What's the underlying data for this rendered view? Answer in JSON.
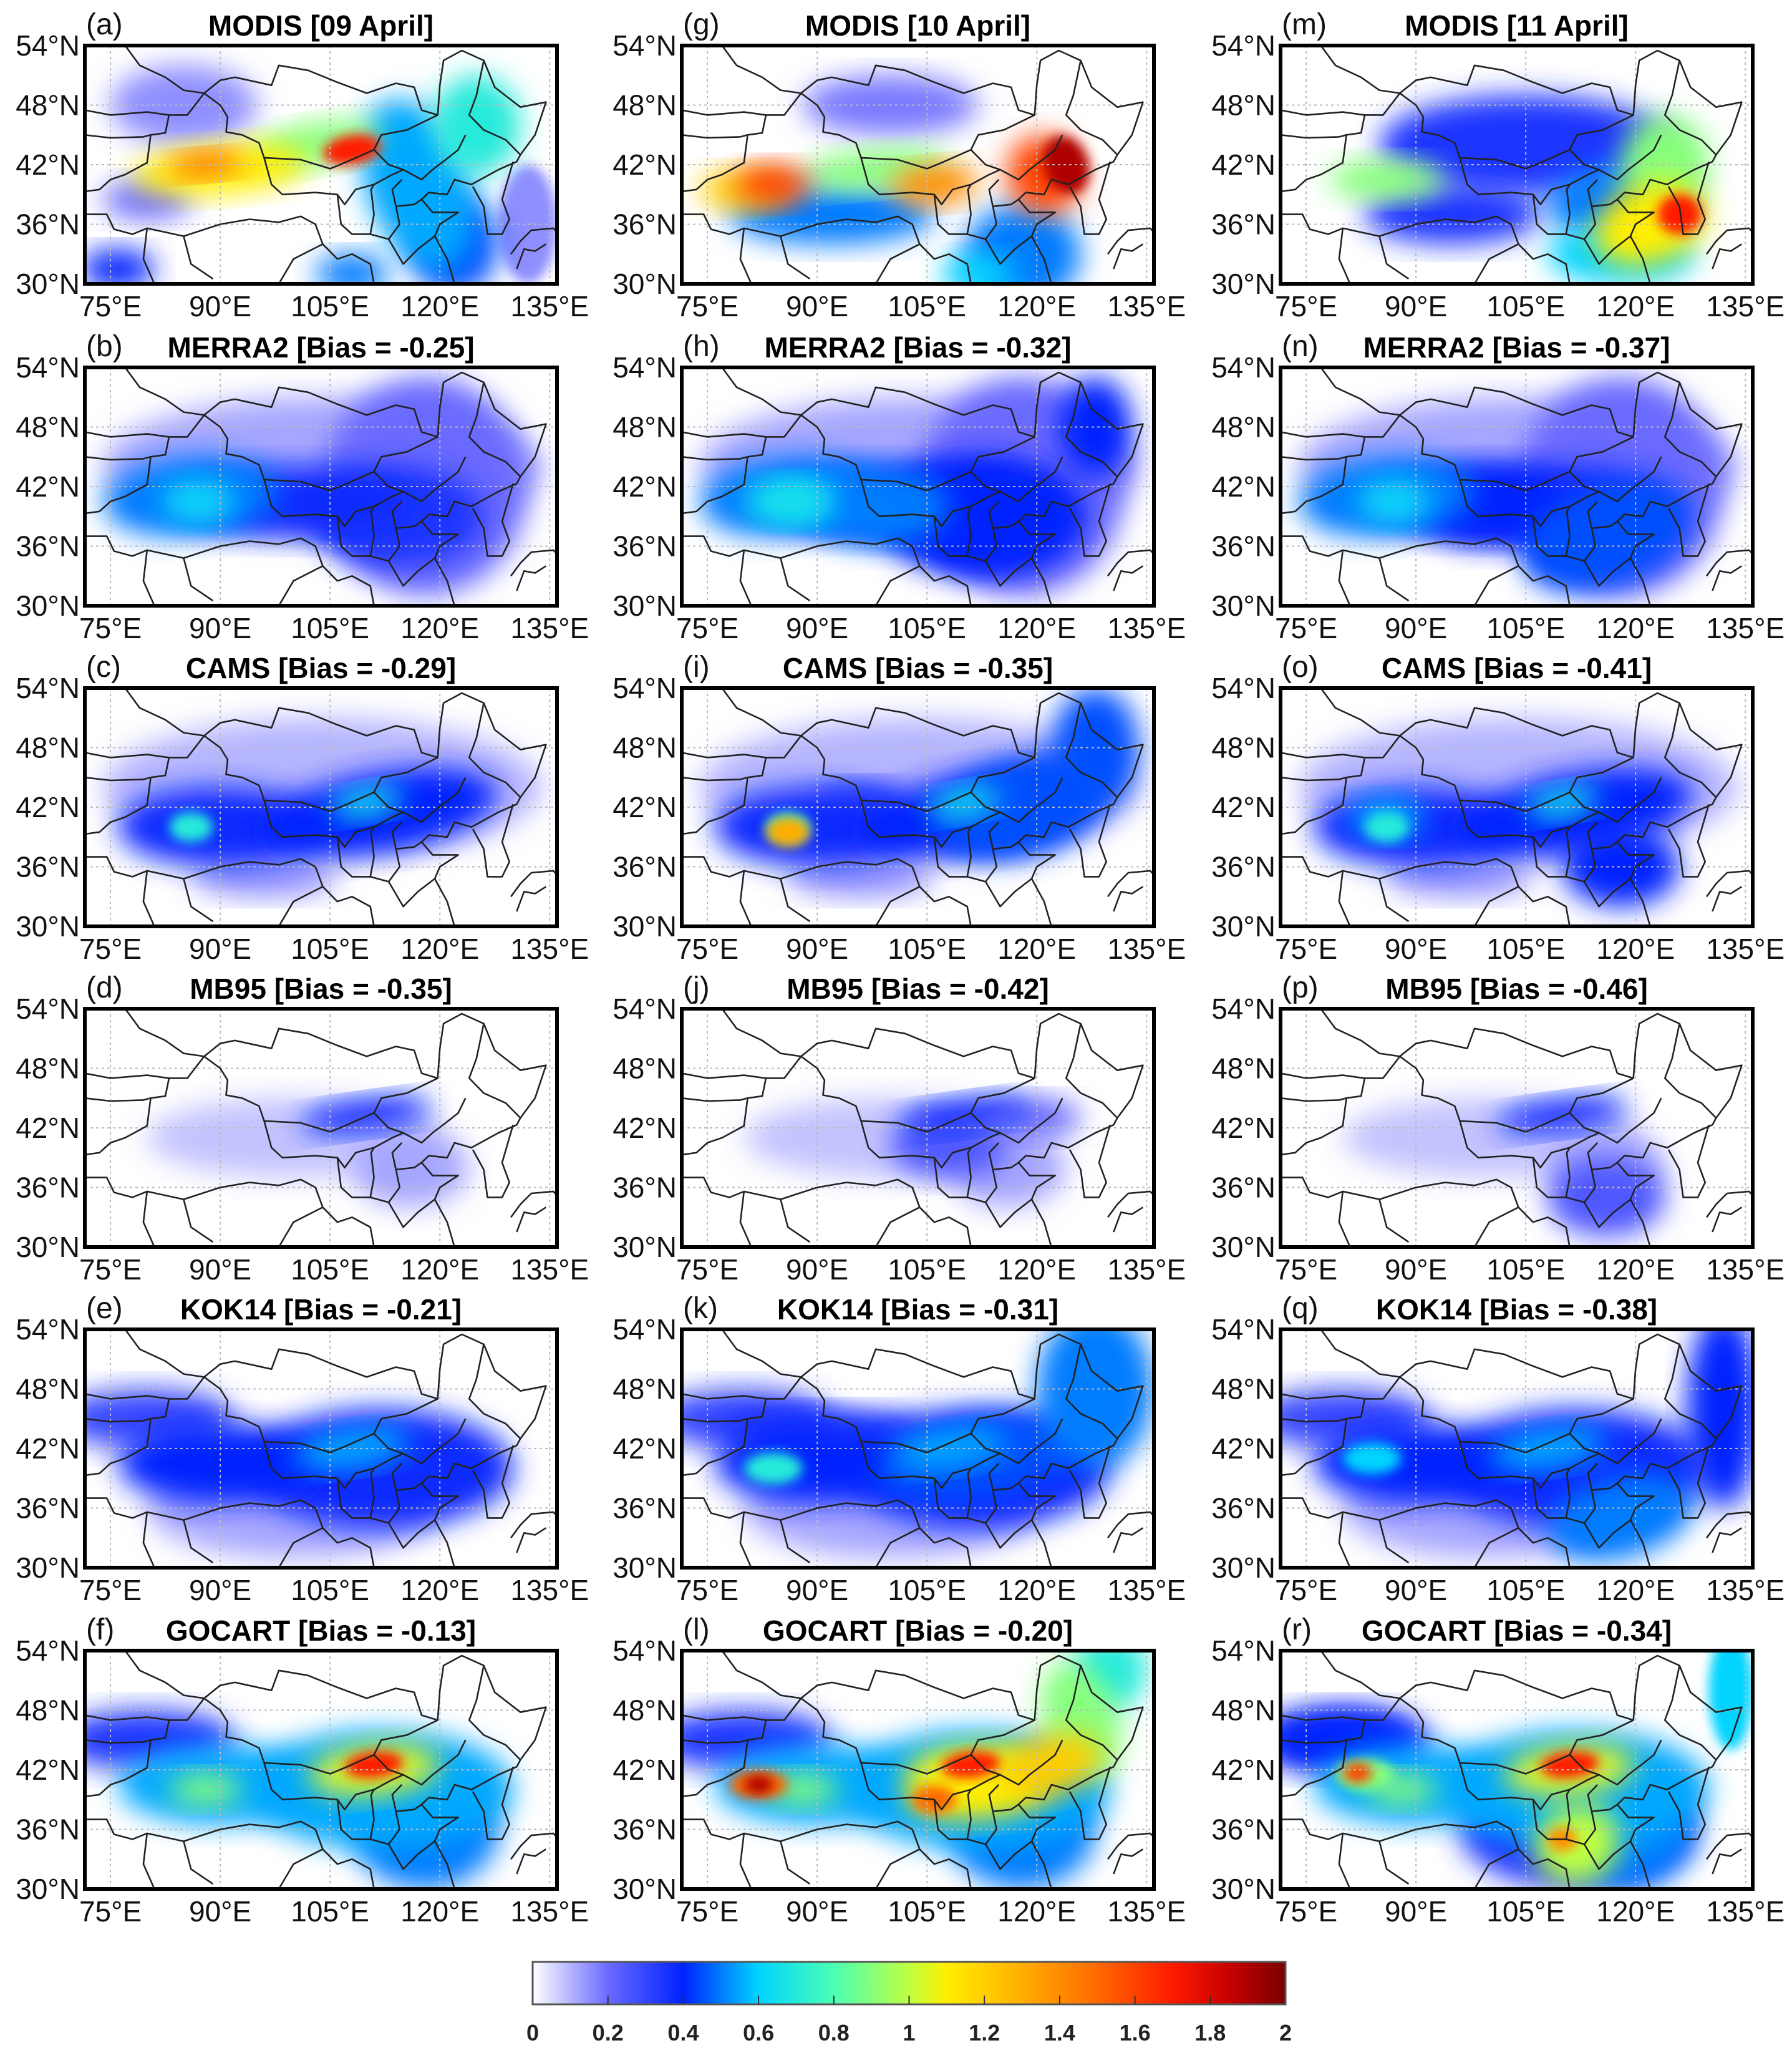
{
  "figure": {
    "columns": [
      "09 April",
      "10 April",
      "11 April"
    ],
    "panels": [
      {
        "letter": "(a)",
        "title": "MODIS [09 April]",
        "source": "MODIS",
        "day": "09 April"
      },
      {
        "letter": "(b)",
        "title": "MERRA2 [Bias = -0.25]",
        "source": "MERRA2",
        "bias": -0.25
      },
      {
        "letter": "(c)",
        "title": "CAMS [Bias = -0.29]",
        "source": "CAMS",
        "bias": -0.29
      },
      {
        "letter": "(d)",
        "title": "MB95 [Bias = -0.35]",
        "source": "MB95",
        "bias": -0.35
      },
      {
        "letter": "(e)",
        "title": "KOK14 [Bias = -0.21]",
        "source": "KOK14",
        "bias": -0.21
      },
      {
        "letter": "(f)",
        "title": "GOCART [Bias = -0.13]",
        "source": "GOCART",
        "bias": -0.13
      },
      {
        "letter": "(g)",
        "title": "MODIS [10 April]",
        "source": "MODIS",
        "day": "10 April"
      },
      {
        "letter": "(h)",
        "title": "MERRA2 [Bias = -0.32]",
        "source": "MERRA2",
        "bias": -0.32
      },
      {
        "letter": "(i)",
        "title": "CAMS [Bias = -0.35]",
        "source": "CAMS",
        "bias": -0.35
      },
      {
        "letter": "(j)",
        "title": "MB95 [Bias = -0.42]",
        "source": "MB95",
        "bias": -0.42
      },
      {
        "letter": "(k)",
        "title": "KOK14 [Bias = -0.31]",
        "source": "KOK14",
        "bias": -0.31
      },
      {
        "letter": "(l)",
        "title": "GOCART [Bias = -0.20]",
        "source": "GOCART",
        "bias": -0.2
      },
      {
        "letter": "(m)",
        "title": "MODIS [11 April]",
        "source": "MODIS",
        "day": "11 April"
      },
      {
        "letter": "(n)",
        "title": "MERRA2 [Bias = -0.37]",
        "source": "MERRA2",
        "bias": -0.37
      },
      {
        "letter": "(o)",
        "title": "CAMS [Bias = -0.41]",
        "source": "CAMS",
        "bias": -0.41
      },
      {
        "letter": "(p)",
        "title": "MB95 [Bias = -0.46]",
        "source": "MB95",
        "bias": -0.46
      },
      {
        "letter": "(q)",
        "title": "KOK14 [Bias = -0.38]",
        "source": "KOK14",
        "bias": -0.38
      },
      {
        "letter": "(r)",
        "title": "GOCART [Bias = -0.34]",
        "source": "GOCART",
        "bias": -0.34
      }
    ],
    "lat_ticks": [
      {
        "value": 30,
        "label": "30°N"
      },
      {
        "value": 36,
        "label": "36°N"
      },
      {
        "value": 42,
        "label": "42°N"
      },
      {
        "value": 48,
        "label": "48°N"
      },
      {
        "value": 54,
        "label": "54°N"
      }
    ],
    "lon_ticks": [
      {
        "value": 75,
        "label": "75°E"
      },
      {
        "value": 90,
        "label": "90°E"
      },
      {
        "value": 105,
        "label": "105°E"
      },
      {
        "value": 120,
        "label": "120°E"
      },
      {
        "value": 135,
        "label": "135°E"
      }
    ],
    "lon_range": [
      71.5,
      136
    ],
    "lat_range": [
      30,
      54
    ],
    "grid": true
  },
  "colorbar": {
    "range": [
      0,
      2
    ],
    "ticks": [
      "0",
      "0.2",
      "0.4",
      "0.6",
      "0.8",
      "1",
      "1.2",
      "1.4",
      "1.6",
      "1.8",
      "2"
    ],
    "orientation": "horizontal",
    "placement": "bottom",
    "colormap": [
      {
        "v": 0.0,
        "c": "#ffffff"
      },
      {
        "v": 0.2,
        "c": "#6a6aff"
      },
      {
        "v": 0.4,
        "c": "#0022ff"
      },
      {
        "v": 0.6,
        "c": "#00d4ff"
      },
      {
        "v": 0.8,
        "c": "#4cffb4"
      },
      {
        "v": 1.0,
        "c": "#bfff40"
      },
      {
        "v": 1.1,
        "c": "#ffee00"
      },
      {
        "v": 1.3,
        "c": "#ffae00"
      },
      {
        "v": 1.5,
        "c": "#ff6a00"
      },
      {
        "v": 1.7,
        "c": "#ff1a00"
      },
      {
        "v": 1.85,
        "c": "#c80000"
      },
      {
        "v": 2.0,
        "c": "#7a0000"
      }
    ]
  }
}
